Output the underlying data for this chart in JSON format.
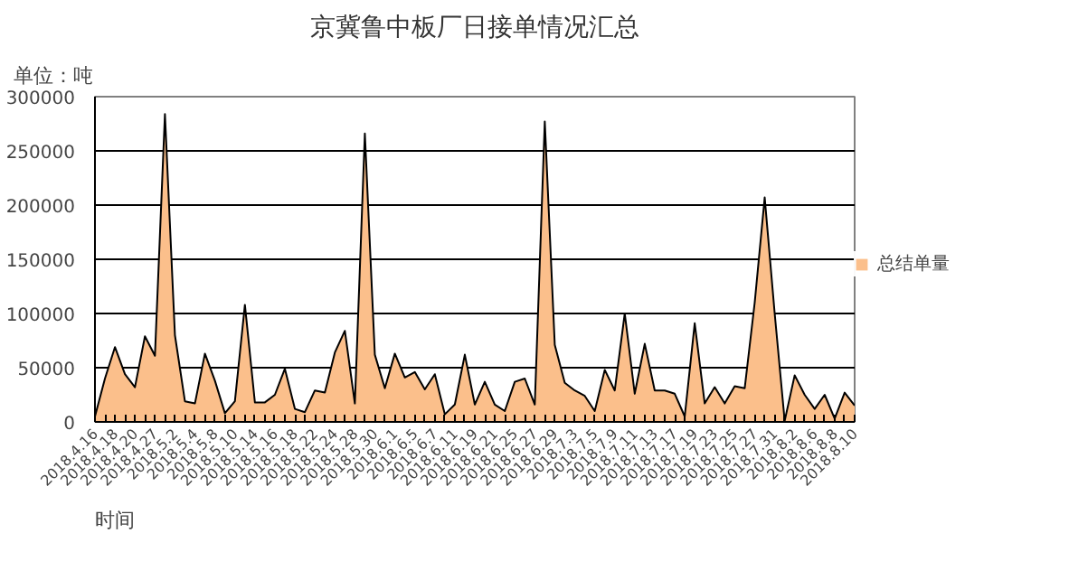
{
  "chart_data": {
    "type": "area",
    "title": "京冀鲁中板厂日接单情况汇总",
    "ylabel": "单位：吨",
    "xlabel": "时间",
    "categories": [
      "2018.4.16",
      null,
      "2018.4.18",
      null,
      "2018.4.20",
      null,
      "2018.4.27",
      null,
      "2018.5.2",
      null,
      "2018.5.4",
      null,
      "2018.5.8",
      null,
      "2018.5.10",
      null,
      "2018.5.14",
      null,
      "2018.5.16",
      null,
      "2018.5.18",
      null,
      "2018.5.22",
      null,
      "2018.5.24",
      null,
      "2018.5.28",
      null,
      "2018.5.30",
      null,
      "2018.6.1",
      null,
      "2018.6.5",
      null,
      "2018.6.7",
      null,
      "2018.6.11",
      null,
      "2018.6.19",
      null,
      "2018.6.21",
      null,
      "2018.6.25",
      null,
      "2018.6.27",
      null,
      "2018.6.29",
      null,
      "2018.7.3",
      null,
      "2018.7.5",
      null,
      "2018.7.9",
      null,
      "2018.7.11",
      null,
      "2018.7.13",
      null,
      "2018.7.17",
      null,
      "2018.7.19",
      null,
      "2018.7.23",
      null,
      "2018.7.25",
      null,
      "2018.7.27",
      null,
      "2018.7.31",
      null,
      "2018.8.2",
      null,
      "2018.8.6",
      null,
      "2018.8.8",
      null,
      "2018.8.10"
    ],
    "series": [
      {
        "name": "总结单量",
        "color": "#fbbf8b",
        "values": [
          5000,
          40000,
          69000,
          44000,
          32000,
          79000,
          61000,
          284000,
          80000,
          19000,
          17000,
          63000,
          38000,
          8000,
          19000,
          108000,
          18000,
          18000,
          25000,
          49000,
          12000,
          9000,
          29000,
          27000,
          64000,
          84000,
          17000,
          266000,
          62000,
          31000,
          63000,
          41000,
          46000,
          30000,
          44000,
          7000,
          16000,
          62000,
          16000,
          37000,
          16000,
          10000,
          37000,
          40000,
          16000,
          277000,
          71000,
          36000,
          29000,
          24000,
          10000,
          48000,
          29000,
          100000,
          26000,
          72000,
          29000,
          29000,
          26000,
          5000,
          91000,
          17000,
          32000,
          17000,
          33000,
          31000,
          110000,
          207000,
          100000,
          1000,
          43000,
          25000,
          12000,
          25000,
          3000,
          27000,
          15000
        ]
      }
    ],
    "ylim": [
      0,
      300000
    ],
    "yticks": [
      0,
      50000,
      100000,
      150000,
      200000,
      250000,
      300000
    ],
    "grid": "y",
    "legend": "right"
  }
}
